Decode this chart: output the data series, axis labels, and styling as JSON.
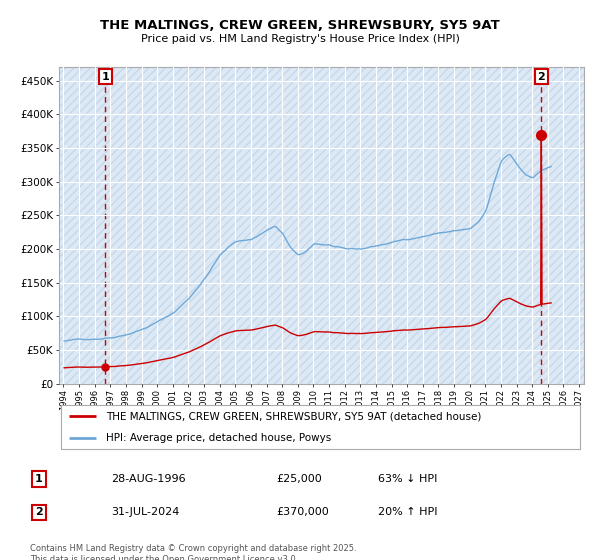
{
  "title": "THE MALTINGS, CREW GREEN, SHREWSBURY, SY5 9AT",
  "subtitle": "Price paid vs. HM Land Registry's House Price Index (HPI)",
  "hpi_color": "#6ea8d8",
  "price_color": "#cc0000",
  "bg_color": "#dce9f5",
  "grid_color": "#ffffff",
  "ylim": [
    0,
    470000
  ],
  "yticks": [
    0,
    50000,
    100000,
    150000,
    200000,
    250000,
    300000,
    350000,
    400000,
    450000
  ],
  "ytick_labels": [
    "£0",
    "£50K",
    "£100K",
    "£150K",
    "£200K",
    "£250K",
    "£300K",
    "£350K",
    "£400K",
    "£450K"
  ],
  "xlim_start": 1993.7,
  "xlim_end": 2027.3,
  "legend_label_red": "THE MALTINGS, CREW GREEN, SHREWSBURY, SY5 9AT (detached house)",
  "legend_label_blue": "HPI: Average price, detached house, Powys",
  "point1_label": "1",
  "point1_date": "28-AUG-1996",
  "point1_price": "£25,000",
  "point1_hpi": "63% ↓ HPI",
  "point1_x": 1996.67,
  "point1_y": 25000,
  "point2_label": "2",
  "point2_date": "31-JUL-2024",
  "point2_price": "£370,000",
  "point2_hpi": "20% ↑ HPI",
  "point2_x": 2024.58,
  "point2_y": 370000,
  "footnote": "Contains HM Land Registry data © Crown copyright and database right 2025.\nThis data is licensed under the Open Government Licence v3.0."
}
